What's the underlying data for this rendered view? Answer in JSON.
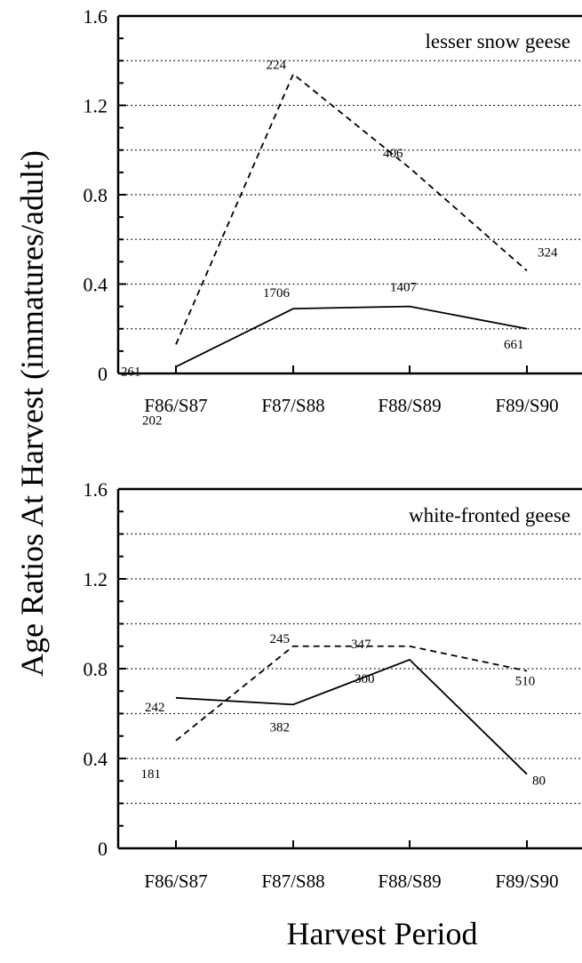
{
  "figure": {
    "ylabel": "Age Ratios At Harvest (immatures/adult)",
    "xlabel": "Harvest Period",
    "colors": {
      "line": "#000000",
      "grid": "#000000",
      "background": "#ffffff"
    }
  },
  "chart_data": [
    {
      "type": "line",
      "title": "lesser snow geese",
      "xlabel": "Harvest Period",
      "ylabel": "Age Ratios At Harvest (immatures/adult)",
      "categories": [
        "F86/S87",
        "F87/S88",
        "F88/S89",
        "F89/S90"
      ],
      "ylim": [
        0,
        1.6
      ],
      "yticks": [
        0,
        0.4,
        0.8,
        1.2,
        1.6
      ],
      "yticklabels": [
        "0",
        "0.4",
        "0.8",
        "1.2",
        "1.6"
      ],
      "grid": "horizontal dotted",
      "series": [
        {
          "style": "dashed",
          "values": [
            0.13,
            1.34,
            0.92,
            0.46
          ],
          "labels": [
            "202",
            "224",
            "406",
            "324"
          ]
        },
        {
          "style": "solid",
          "values": [
            0.03,
            0.29,
            0.3,
            0.2
          ],
          "labels": [
            "261",
            "1706",
            "1407",
            "661"
          ]
        }
      ]
    },
    {
      "type": "line",
      "title": "white-fronted geese",
      "xlabel": "Harvest Period",
      "ylabel": "Age Ratios At Harvest (immatures/adult)",
      "categories": [
        "F86/S87",
        "F87/S88",
        "F88/S89",
        "F89/S90"
      ],
      "ylim": [
        0,
        1.6
      ],
      "yticks": [
        0,
        0.4,
        0.8,
        1.2,
        1.6
      ],
      "yticklabels": [
        "0",
        "0.4",
        "0.8",
        "1.2",
        "1.6"
      ],
      "grid": "horizontal dotted",
      "series": [
        {
          "style": "dashed",
          "values": [
            0.48,
            0.9,
            0.9,
            0.79
          ],
          "labels": [
            "181",
            "245",
            "347",
            "510"
          ]
        },
        {
          "style": "solid",
          "values": [
            0.67,
            0.64,
            0.84,
            0.33
          ],
          "labels": [
            "242",
            "382",
            "300",
            "80"
          ]
        }
      ]
    }
  ]
}
